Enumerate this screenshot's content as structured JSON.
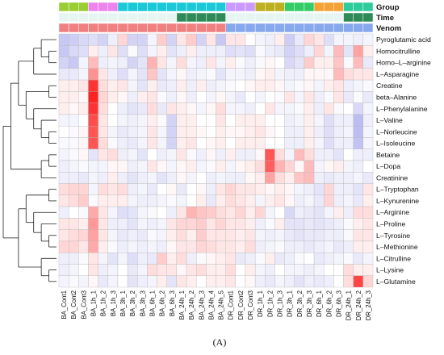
{
  "chart_data": {
    "type": "heatmap",
    "caption": "(A)",
    "columns": [
      "BA_Cont1",
      "BA_Cont2",
      "BA_Cont3",
      "BA_1h_1",
      "BA_1h_2",
      "BA_1h_3",
      "BA_3h_1",
      "BA_3h_2",
      "BA_3h_3",
      "BA_6h_1",
      "BA_6h_2",
      "BA_6h_3",
      "BA_24h_1",
      "BA_24h_2",
      "BA_24h_3",
      "BA_24h_4",
      "BA_24h_5",
      "DR_Cont1",
      "DR_Cont2",
      "DR_Cont3",
      "DR_1h_1",
      "DR_1h_2",
      "DR_1h_3",
      "DR_3h_1",
      "DR_3h_2",
      "DR_3h_3",
      "DR_6h_1",
      "DR_6h_2",
      "DR_6h_3",
      "DR_24h_1",
      "DR_24h_2",
      "DR_24h_3"
    ],
    "rows": [
      "Pyroglutamic acid",
      "Homocitrulline",
      "Homo–L–arginine",
      "L–Asparagine",
      "Creatine",
      "beta–Alanine",
      "L–Phenylalanine",
      "L–Valine",
      "L–Norleucine",
      "L–Isoleucine",
      "Betaine",
      "L–Dopa",
      "Creatinine",
      "L–Tryptophan",
      "L–Kynurenine",
      "L–Arginine",
      "L–Proline",
      "L–Tyrosine",
      "L–Methionine",
      "L–Citrulline",
      "L–Lysine",
      "L–Glutamine"
    ],
    "annotations": [
      {
        "name": "Group",
        "values": [
          0,
          0,
          0,
          1,
          1,
          1,
          2,
          2,
          2,
          2,
          2,
          2,
          2,
          2,
          2,
          2,
          2,
          3,
          3,
          3,
          4,
          4,
          4,
          5,
          5,
          5,
          6,
          6,
          6,
          7,
          7,
          7
        ],
        "colors": [
          "#9ACD32",
          "#EE82EE",
          "#1BC8D8",
          "#CC99FF",
          "#BDB020",
          "#33CC66",
          "#F4A236",
          "#2ECC9A"
        ]
      },
      {
        "name": "Time",
        "values": [
          0,
          0,
          0,
          0,
          0,
          0,
          0,
          0,
          0,
          0,
          0,
          0,
          1,
          1,
          1,
          1,
          1,
          0,
          0,
          0,
          0,
          0,
          0,
          0,
          0,
          0,
          0,
          0,
          0,
          1,
          1,
          1
        ],
        "colors": [
          "#E6F5F1",
          "#2E8B57"
        ]
      },
      {
        "name": "Venom",
        "values": [
          0,
          0,
          0,
          0,
          0,
          0,
          0,
          0,
          0,
          0,
          0,
          0,
          0,
          0,
          0,
          0,
          0,
          1,
          1,
          1,
          1,
          1,
          1,
          1,
          1,
          1,
          1,
          1,
          1,
          1,
          1,
          1
        ],
        "colors": [
          "#F08080",
          "#87A8EC"
        ]
      }
    ],
    "color_scale": {
      "low": "#5B5BDD",
      "mid": "#FFFFFF",
      "high": "#FF0000",
      "range": [
        -3,
        3
      ]
    },
    "values": [
      [
        -1.0,
        -0.9,
        -0.7,
        -0.6,
        -0.8,
        -0.3,
        0.5,
        -0.8,
        -0.8,
        -0.2,
        0.6,
        -0.8,
        0.3,
        0.6,
        -0.8,
        0.3,
        -1.0,
        0.3,
        0.3,
        0.0,
        -0.2,
        -0.3,
        0.2,
        -0.9,
        -0.4,
        0.5,
        0.3,
        -0.6,
        -0.2,
        -0.2,
        -0.3,
        -0.2
      ],
      [
        -1.0,
        -0.7,
        -0.6,
        0.2,
        -0.3,
        0.3,
        -0.6,
        -0.1,
        -0.6,
        -0.2,
        0.2,
        -0.5,
        -0.3,
        0.2,
        -0.3,
        -0.3,
        -0.3,
        -0.6,
        -0.5,
        -0.6,
        -0.1,
        -0.3,
        -0.4,
        -0.8,
        -0.6,
        -0.3,
        0.5,
        -0.2,
        0.8,
        -0.5,
        1.1,
        0.2
      ],
      [
        -0.8,
        -1.0,
        -0.2,
        0.8,
        -0.3,
        -0.2,
        -0.3,
        -0.8,
        -0.5,
        0.9,
        0.3,
        -0.2,
        0.4,
        -0.2,
        -0.3,
        0.3,
        -0.2,
        0.2,
        -0.1,
        -0.3,
        -0.1,
        0.1,
        0.0,
        -0.7,
        -0.5,
        0.6,
        0.2,
        0.2,
        0.7,
        -0.1,
        0.8,
        -0.4
      ],
      [
        -0.4,
        -0.4,
        -0.2,
        1.3,
        0.3,
        -0.3,
        -0.6,
        -0.2,
        -0.5,
        0.7,
        -0.5,
        -0.2,
        0.1,
        -0.3,
        -0.2,
        -0.1,
        -0.5,
        -0.2,
        -0.2,
        -0.3,
        0.1,
        0.2,
        -0.2,
        -0.3,
        -0.3,
        0.1,
        0.1,
        0.1,
        0.8,
        0.4,
        0.3,
        0.3
      ],
      [
        0.2,
        0.2,
        0.3,
        2.4,
        0.4,
        0.2,
        0.3,
        -0.2,
        -0.5,
        0.2,
        -0.4,
        -0.3,
        0.2,
        -0.3,
        0.2,
        -0.3,
        -0.2,
        -0.1,
        0.0,
        0.1,
        0.2,
        0.2,
        0.1,
        -0.2,
        -0.1,
        0.1,
        -0.2,
        0.2,
        0.3,
        -0.3,
        -0.2,
        -0.1
      ],
      [
        0.2,
        0.2,
        0.1,
        2.6,
        0.5,
        0.2,
        0.1,
        -0.3,
        0.2,
        0.3,
        -0.1,
        -0.3,
        0.1,
        -0.3,
        0.0,
        -0.2,
        0.1,
        -0.2,
        -0.4,
        0.0,
        -0.2,
        0.0,
        -0.1,
        0.3,
        -0.2,
        0.3,
        -0.3,
        -0.1,
        0.3,
        -0.4,
        -0.1,
        -0.4
      ],
      [
        0.2,
        0.1,
        0.2,
        2.4,
        0.4,
        0.0,
        -0.3,
        -0.5,
        -0.4,
        0.4,
        -0.4,
        0.3,
        0.2,
        0.1,
        -0.2,
        0.1,
        0.4,
        -0.2,
        -0.2,
        -0.3,
        0.0,
        0.3,
        -0.2,
        -0.2,
        -0.1,
        0.2,
        -0.3,
        0.3,
        -0.1,
        0.0,
        -0.7,
        -0.2
      ],
      [
        -0.2,
        -0.2,
        0.0,
        2.1,
        0.3,
        0.0,
        -0.2,
        -0.3,
        -0.2,
        0.2,
        -0.1,
        -0.8,
        0.2,
        0.2,
        0.0,
        0.0,
        0.3,
        0.0,
        0.2,
        0.2,
        0.2,
        0.0,
        0.0,
        -0.3,
        -0.2,
        0.2,
        -0.2,
        -0.6,
        -0.3,
        -0.3,
        -1.2,
        -0.3
      ],
      [
        0.0,
        -0.1,
        0.1,
        2.0,
        0.3,
        -0.2,
        -0.4,
        -0.3,
        -0.2,
        0.3,
        -0.2,
        -0.8,
        0.2,
        0.2,
        0.1,
        0.0,
        0.2,
        0.1,
        0.1,
        0.2,
        0.3,
        0.1,
        0.0,
        -0.3,
        -0.3,
        0.2,
        -0.3,
        -0.6,
        -0.3,
        -0.2,
        -1.2,
        -0.2
      ],
      [
        -0.1,
        -0.1,
        0.1,
        2.0,
        0.4,
        -0.1,
        -0.3,
        -0.4,
        -0.2,
        0.3,
        -0.2,
        -0.8,
        0.2,
        0.3,
        0.0,
        0.1,
        0.2,
        0.0,
        0.2,
        0.2,
        0.2,
        0.0,
        0.0,
        -0.3,
        -0.3,
        0.2,
        -0.2,
        -0.6,
        -0.3,
        -0.3,
        -1.1,
        -0.2
      ],
      [
        -0.2,
        -0.1,
        0.1,
        -0.5,
        0.3,
        0.4,
        -0.3,
        -0.2,
        -0.5,
        0.0,
        -0.3,
        -0.2,
        0.3,
        -0.1,
        -0.3,
        0.1,
        -0.3,
        0.2,
        -0.3,
        -0.3,
        0.1,
        2.0,
        0.4,
        -0.2,
        0.8,
        0.4,
        -0.3,
        -0.3,
        -0.5,
        0.0,
        -0.3,
        -0.3
      ],
      [
        -0.3,
        -0.2,
        -0.1,
        -0.2,
        -0.2,
        0.1,
        0.1,
        -0.3,
        -0.2,
        0.3,
        0.1,
        -0.2,
        0.1,
        0.2,
        -0.2,
        -0.1,
        0.2,
        -0.2,
        0.1,
        0.2,
        0.4,
        1.9,
        0.9,
        0.5,
        0.1,
        0.8,
        -0.2,
        0.1,
        0.2,
        -0.2,
        -0.3,
        0.0
      ],
      [
        -0.3,
        -0.3,
        -0.4,
        -0.2,
        -0.3,
        0.2,
        -0.3,
        -0.5,
        -0.3,
        -0.2,
        -0.5,
        -0.3,
        0.1,
        -0.2,
        0.0,
        -0.3,
        -0.2,
        -0.3,
        -0.3,
        0.1,
        0.2,
        1.1,
        0.4,
        0.2,
        0.7,
        0.8,
        -0.3,
        -0.4,
        -0.3,
        -0.3,
        -0.2,
        -0.4
      ],
      [
        0.4,
        0.5,
        0.5,
        -0.2,
        0.4,
        0.3,
        0.4,
        -0.3,
        -0.2,
        -0.4,
        0.0,
        0.1,
        -0.4,
        0.0,
        0.1,
        -0.3,
        0.3,
        0.5,
        0.3,
        0.3,
        0.2,
        0.1,
        0.2,
        0.1,
        -0.2,
        -0.3,
        -0.5,
        0.5,
        -0.3,
        -0.3,
        -0.5,
        0.3
      ],
      [
        0.3,
        0.4,
        0.6,
        -0.1,
        0.2,
        0.2,
        0.2,
        -0.2,
        -0.3,
        -0.3,
        -0.2,
        -0.1,
        -0.2,
        0.0,
        0.2,
        -0.4,
        0.2,
        0.4,
        0.3,
        0.2,
        -0.2,
        0.2,
        0.3,
        0.1,
        -0.3,
        -0.2,
        -0.4,
        0.5,
        -0.3,
        -0.2,
        -0.4,
        0.2
      ],
      [
        -0.3,
        0.0,
        -0.1,
        1.0,
        0.3,
        -0.2,
        -0.6,
        -0.5,
        -0.2,
        -0.1,
        0.0,
        -0.3,
        0.3,
        0.9,
        0.7,
        0.6,
        0.4,
        0.3,
        0.5,
        0.2,
        0.5,
        -0.2,
        0.0,
        -0.7,
        -0.3,
        -0.4,
        -0.5,
        -0.2,
        0.2,
        -0.3,
        0.4,
        0.4
      ],
      [
        0.3,
        0.3,
        0.2,
        1.2,
        0.3,
        -0.3,
        -0.3,
        -0.5,
        -0.2,
        -0.3,
        -0.2,
        0.3,
        0.5,
        0.5,
        0.6,
        0.3,
        0.5,
        0.3,
        0.3,
        0.2,
        -0.3,
        -0.1,
        0.2,
        -0.5,
        -0.5,
        -0.4,
        -0.5,
        -0.4,
        -0.3,
        -0.1,
        0.2,
        0.3
      ],
      [
        0.3,
        0.4,
        0.5,
        1.1,
        0.3,
        -0.2,
        -0.4,
        -0.3,
        -0.4,
        -0.1,
        -0.2,
        0.2,
        0.4,
        0.2,
        0.6,
        0.3,
        0.3,
        0.3,
        0.2,
        0.3,
        -0.2,
        -0.3,
        -0.2,
        -0.4,
        -0.5,
        -0.4,
        -0.4,
        -0.3,
        -0.3,
        -0.1,
        0.3,
        0.3
      ],
      [
        0.5,
        0.5,
        0.3,
        1.0,
        0.2,
        -0.1,
        -0.3,
        -0.2,
        -0.3,
        -0.2,
        -0.3,
        0.1,
        0.3,
        0.3,
        0.5,
        0.4,
        0.3,
        0.3,
        0.2,
        0.4,
        -0.3,
        -0.2,
        -0.1,
        -0.3,
        -0.3,
        -0.4,
        -0.3,
        -0.2,
        -0.4,
        -0.3,
        0.2,
        0.2
      ],
      [
        -0.3,
        -0.3,
        -0.1,
        0.3,
        -0.2,
        -0.5,
        -0.2,
        -0.6,
        -0.3,
        -0.4,
        0.6,
        0.2,
        0.4,
        -0.3,
        -0.1,
        0.1,
        0.2,
        0.3,
        -0.4,
        -0.3,
        -0.1,
        0.2,
        -0.4,
        -0.3,
        -0.1,
        0.0,
        -0.4,
        -0.3,
        -0.2,
        -0.1,
        -0.4,
        -0.2
      ],
      [
        -0.3,
        -0.2,
        0.0,
        0.3,
        -0.3,
        -0.2,
        0.0,
        -0.4,
        -0.2,
        0.4,
        0.3,
        0.3,
        0.1,
        0.3,
        0.4,
        0.2,
        0.2,
        0.4,
        0.0,
        0.2,
        -0.2,
        -0.3,
        0.0,
        -0.2,
        -0.2,
        -0.3,
        -0.2,
        0.0,
        0.0,
        0.4,
        0.2,
        0.2
      ],
      [
        -0.2,
        -0.1,
        -0.2,
        0.1,
        -0.4,
        -0.2,
        0.0,
        -0.5,
        -0.3,
        -0.2,
        0.2,
        -0.5,
        0.3,
        0.2,
        0.0,
        0.2,
        0.2,
        0.3,
        0.0,
        0.1,
        -0.3,
        -0.4,
        -0.2,
        -0.3,
        -0.5,
        -0.3,
        -0.4,
        -0.3,
        0.0,
        0.4,
        2.2,
        0.5
      ]
    ]
  }
}
